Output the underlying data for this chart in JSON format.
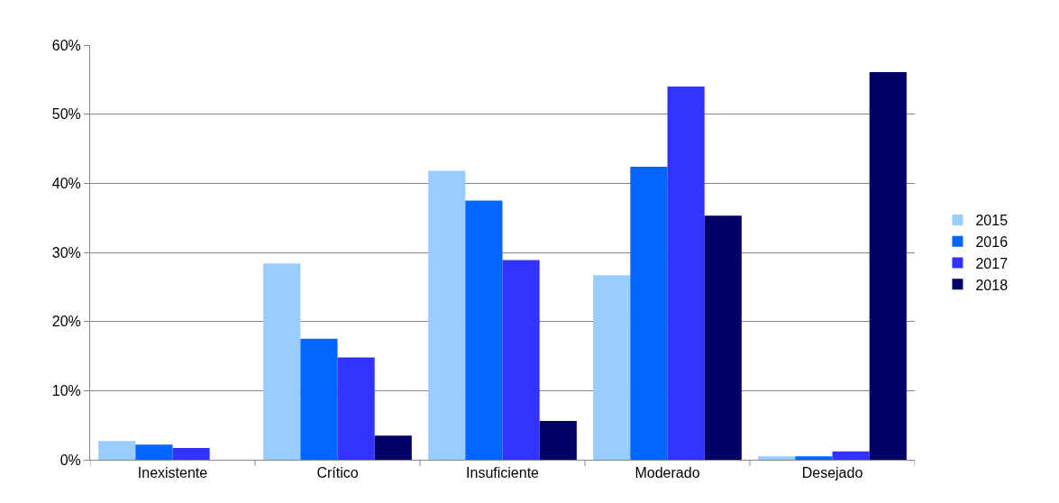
{
  "chart_data": {
    "type": "bar",
    "categories": [
      "Inexistente",
      "Crítico",
      "Insuficiente",
      "Moderado",
      "Desejado"
    ],
    "series": [
      {
        "name": "2015",
        "color": "#99ccff",
        "values": [
          2.7,
          28.4,
          41.8,
          26.7,
          0.5
        ]
      },
      {
        "name": "2016",
        "color": "#0066ff",
        "values": [
          2.2,
          17.5,
          37.5,
          42.4,
          0.5
        ]
      },
      {
        "name": "2017",
        "color": "#3333ff",
        "values": [
          1.7,
          14.8,
          28.9,
          54.0,
          1.2
        ]
      },
      {
        "name": "2018",
        "color": "#000066",
        "values": [
          0,
          3.5,
          5.6,
          35.3,
          56.1
        ]
      }
    ],
    "ylim": [
      0,
      60
    ],
    "yticks": [
      {
        "value": 0,
        "label": "0%"
      },
      {
        "value": 10,
        "label": "10%"
      },
      {
        "value": 20,
        "label": "20%"
      },
      {
        "value": 30,
        "label": "30%"
      },
      {
        "value": 40,
        "label": "40%"
      },
      {
        "value": 50,
        "label": "50%"
      },
      {
        "value": 60,
        "label": "60%"
      }
    ],
    "grid": "y",
    "legend": "right"
  }
}
